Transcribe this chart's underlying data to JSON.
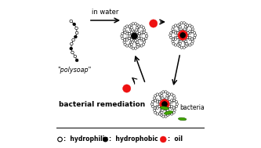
{
  "bg_color": "#ffffff",
  "text_polysoap": "\"polysoap\"",
  "text_inwater": "in water",
  "text_bacterial": "bacterial remediation",
  "text_bacteria": "bacteria",
  "oil_color": "#ee1111",
  "bacteria_color": "#44aa00",
  "arrow_color": "black",
  "fig_w": 3.33,
  "fig_h": 1.89,
  "dpi": 100
}
